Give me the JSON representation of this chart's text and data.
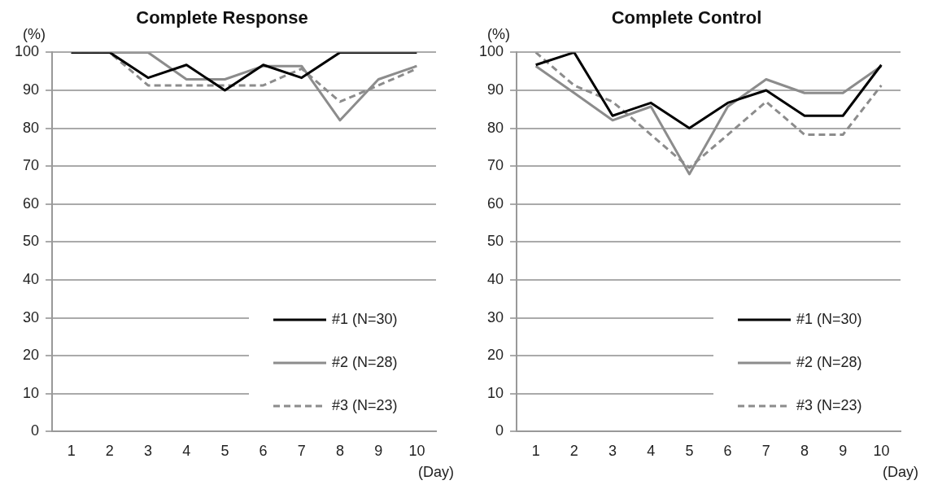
{
  "chart_data": [
    {
      "type": "line",
      "title": "Complete Response",
      "ylabel": "(%)",
      "xlabel": "(Day)",
      "categories": [
        "1",
        "2",
        "3",
        "4",
        "5",
        "6",
        "7",
        "8",
        "9",
        "10"
      ],
      "ylim": [
        0,
        100
      ],
      "yticks": [
        0,
        10,
        20,
        30,
        40,
        50,
        60,
        70,
        80,
        90,
        100
      ],
      "grid": "y",
      "legend": "bottom right",
      "marker": "none",
      "series": [
        {
          "name": "#1 (N=30)",
          "color": "#000000",
          "line_style": "solid",
          "values": [
            100,
            100,
            93.3,
            96.7,
            90,
            96.7,
            93.3,
            100,
            100,
            100
          ]
        },
        {
          "name": "#2 (N=28)",
          "color": "#8c8c8c",
          "line_style": "solid",
          "values": [
            100,
            100,
            100,
            92.9,
            92.9,
            96.4,
            96.4,
            82.1,
            92.9,
            96.4
          ]
        },
        {
          "name": "#3 (N=23)",
          "color": "#8c8c8c",
          "line_style": "dashed",
          "values": [
            100,
            100,
            91.3,
            91.3,
            91.3,
            91.3,
            95.7,
            87,
            91.3,
            95.7
          ]
        }
      ]
    },
    {
      "type": "line",
      "title": "Complete Control",
      "ylabel": "(%)",
      "xlabel": "(Day)",
      "categories": [
        "1",
        "2",
        "3",
        "4",
        "5",
        "6",
        "7",
        "8",
        "9",
        "10"
      ],
      "ylim": [
        0,
        100
      ],
      "yticks": [
        0,
        10,
        20,
        30,
        40,
        50,
        60,
        70,
        80,
        90,
        100
      ],
      "grid": "y",
      "legend": "bottom right",
      "marker": "none",
      "series": [
        {
          "name": "#1 (N=30)",
          "color": "#000000",
          "line_style": "solid",
          "values": [
            96.7,
            100,
            83.3,
            86.7,
            80,
            86.7,
            90,
            83.3,
            83.3,
            96.7
          ]
        },
        {
          "name": "#2 (N=28)",
          "color": "#8c8c8c",
          "line_style": "solid",
          "values": [
            96.4,
            89.3,
            82.1,
            85.7,
            67.9,
            85.7,
            92.9,
            89.3,
            89.3,
            96.4
          ]
        },
        {
          "name": "#3 (N=23)",
          "color": "#8c8c8c",
          "line_style": "dashed",
          "values": [
            100,
            91.3,
            87,
            78.3,
            69.6,
            78.3,
            87,
            78.3,
            78.3,
            91.3
          ]
        }
      ]
    }
  ]
}
